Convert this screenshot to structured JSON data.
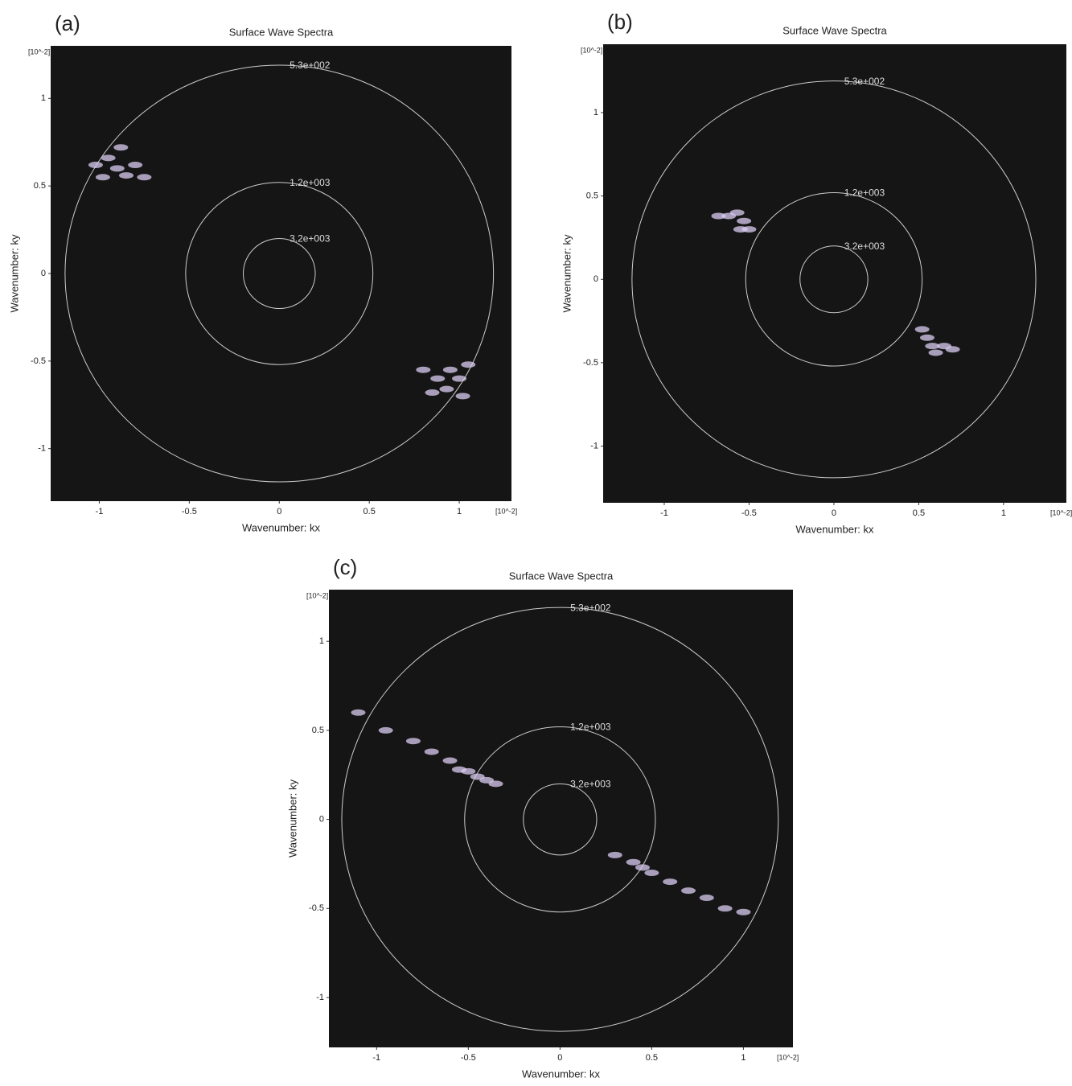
{
  "chart_data": [
    {
      "type": "contour",
      "panel": "(a)",
      "title": "Surface Wave Spectra",
      "xlabel": "Wavenumber: kx",
      "ylabel": "Wavenumber: ky",
      "scale_label": "[10^-2]",
      "xlim": [
        -1.27,
        1.29
      ],
      "ylim": [
        -1.3,
        1.3
      ],
      "xticks": [
        -1,
        -0.5,
        0,
        0.5,
        1
      ],
      "yticks": [
        -1,
        -0.5,
        0,
        0.5,
        1
      ],
      "contours": [
        {
          "label": "5.3e+002",
          "radius": 1.19
        },
        {
          "label": "1.2e+003",
          "radius": 0.52
        },
        {
          "label": "3.2e+003",
          "radius": 0.2
        }
      ],
      "color": "#d9ccf2",
      "x": [
        -1.02,
        -0.95,
        -0.9,
        -0.85,
        -0.8,
        -0.98,
        -0.88,
        -0.75,
        0.8,
        0.88,
        0.95,
        1.0,
        1.05,
        0.85,
        0.93,
        1.02
      ],
      "y": [
        0.62,
        0.66,
        0.6,
        0.56,
        0.62,
        0.55,
        0.72,
        0.55,
        -0.55,
        -0.6,
        -0.55,
        -0.6,
        -0.52,
        -0.68,
        -0.66,
        -0.7
      ]
    },
    {
      "type": "contour",
      "panel": "(b)",
      "title": "Surface Wave Spectra",
      "xlabel": "Wavenumber: kx",
      "ylabel": "Wavenumber: ky",
      "scale_label": "[10^-2]",
      "xlim": [
        -1.36,
        1.37
      ],
      "ylim": [
        -1.34,
        1.41
      ],
      "xticks": [
        -1,
        -0.5,
        0,
        0.5,
        1
      ],
      "yticks": [
        -1,
        -0.5,
        0,
        0.5,
        1
      ],
      "contours": [
        {
          "label": "5.3e+002",
          "radius": 1.19
        },
        {
          "label": "1.2e+003",
          "radius": 0.52
        },
        {
          "label": "3.2e+003",
          "radius": 0.2
        }
      ],
      "color": "#d9ccf2",
      "x": [
        -0.62,
        -0.57,
        -0.53,
        -0.5,
        -0.55,
        -0.68,
        0.55,
        0.58,
        0.6,
        0.65,
        0.7,
        0.52
      ],
      "y": [
        0.38,
        0.4,
        0.35,
        0.3,
        0.3,
        0.38,
        -0.35,
        -0.4,
        -0.44,
        -0.4,
        -0.42,
        -0.3
      ]
    },
    {
      "type": "contour",
      "panel": "(c)",
      "title": "Surface Wave Spectra",
      "xlabel": "Wavenumber: kx",
      "ylabel": "Wavenumber: ky",
      "scale_label": "[10^-2]",
      "xlim": [
        -1.26,
        1.27
      ],
      "ylim": [
        -1.28,
        1.29
      ],
      "xticks": [
        -1,
        -0.5,
        0,
        0.5,
        1
      ],
      "yticks": [
        -1,
        -0.5,
        0,
        0.5,
        1
      ],
      "contours": [
        {
          "label": "5.3e+002",
          "radius": 1.19
        },
        {
          "label": "1.2e+003",
          "radius": 0.52
        },
        {
          "label": "3.2e+003",
          "radius": 0.2
        }
      ],
      "color": "#d9ccf2",
      "x": [
        -1.1,
        -0.95,
        -0.8,
        -0.7,
        -0.6,
        -0.55,
        -0.5,
        -0.45,
        -0.4,
        -0.35,
        0.3,
        0.4,
        0.45,
        0.5,
        0.6,
        0.7,
        0.8,
        0.9,
        1.0
      ],
      "y": [
        0.6,
        0.5,
        0.44,
        0.38,
        0.33,
        0.28,
        0.27,
        0.24,
        0.22,
        0.2,
        -0.2,
        -0.24,
        -0.27,
        -0.3,
        -0.35,
        -0.4,
        -0.44,
        -0.5,
        -0.52
      ]
    }
  ]
}
